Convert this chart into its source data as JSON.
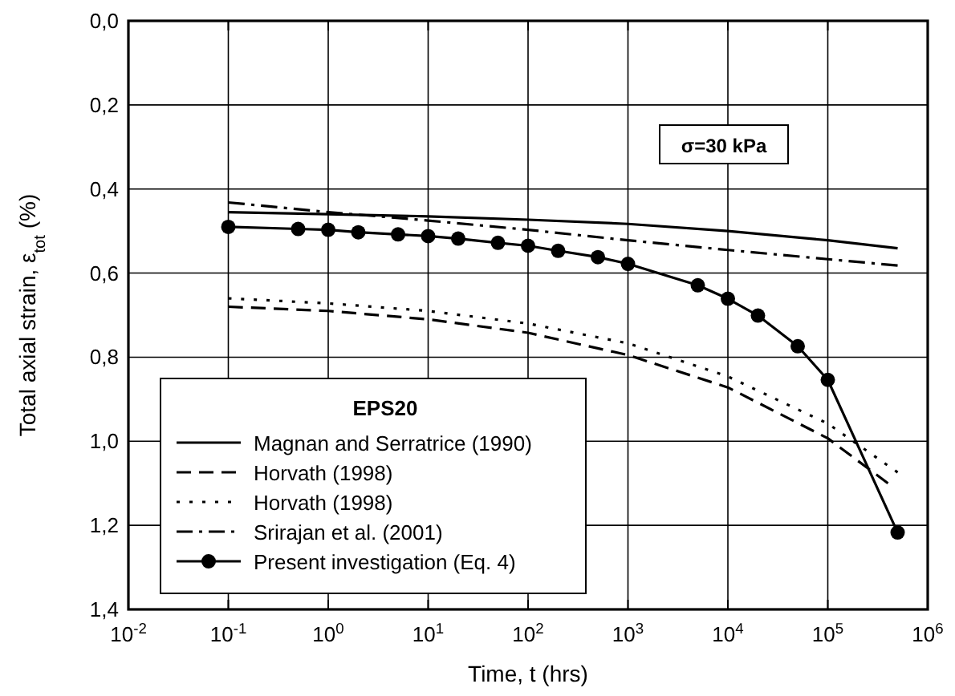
{
  "chart_data": {
    "type": "line",
    "xlabel": "Time, t (hrs)",
    "ylabel": "Total axial strain, ε$_{tot}$ (%)",
    "legend_title": "EPS20",
    "legend": "bottom left",
    "grid": true,
    "log": "x",
    "xlim": [
      0.01,
      1000000
    ],
    "xticks": [
      {
        "value": 0.01,
        "label": "10$^{-2}$"
      },
      {
        "value": 0.1,
        "label": "10$^{-1}$"
      },
      {
        "value": 1,
        "label": "10$^{0}$"
      },
      {
        "value": 10,
        "label": "10$^{1}$"
      },
      {
        "value": 100,
        "label": "10$^{2}$"
      },
      {
        "value": 1000,
        "label": "10$^{3}$"
      },
      {
        "value": 10000,
        "label": "10$^{4}$"
      },
      {
        "value": 100000,
        "label": "10$^{5}$"
      },
      {
        "value": 1000000,
        "label": "10$^{6}$"
      }
    ],
    "ylim": [
      1.4,
      0
    ],
    "yticks": [
      {
        "value": 0,
        "label": "0,0"
      },
      {
        "value": 0.2,
        "label": "0,2"
      },
      {
        "value": 0.4,
        "label": "0,4"
      },
      {
        "value": 0.6,
        "label": "0,6"
      },
      {
        "value": 0.8,
        "label": "0,8"
      },
      {
        "value": 1.0,
        "label": "1,0"
      },
      {
        "value": 1.2,
        "label": "1,2"
      },
      {
        "value": 1.4,
        "label": "1,4"
      }
    ],
    "annotations": [
      "σ=30 kPa"
    ],
    "series": [
      {
        "name": "Magnan and Serratrice (1990)",
        "color": "#000000",
        "line_style": "solid",
        "marker": "none",
        "x": [
          0.1,
          1,
          10,
          100,
          1000,
          10000,
          100000,
          500000
        ],
        "values": [
          0.455,
          0.46,
          0.465,
          0.473,
          0.483,
          0.5,
          0.522,
          0.541
        ]
      },
      {
        "name": "Horvath (1998)",
        "color": "#000000",
        "line_style": "dashed",
        "marker": "none",
        "x": [
          0.1,
          1,
          10,
          100,
          1000,
          10000,
          100000,
          400000
        ],
        "values": [
          0.68,
          0.69,
          0.71,
          0.742,
          0.795,
          0.872,
          0.993,
          1.1
        ]
      },
      {
        "name": "Horvath (1998)",
        "color": "#000000",
        "line_style": "dotted",
        "marker": "none",
        "x": [
          0.1,
          1,
          10,
          100,
          1000,
          10000,
          100000,
          500000
        ],
        "values": [
          0.66,
          0.672,
          0.69,
          0.72,
          0.767,
          0.846,
          0.958,
          1.074
        ]
      },
      {
        "name": "Srirajan et al. (2001)",
        "color": "#000000",
        "line_style": "dashdot",
        "marker": "none",
        "x": [
          0.1,
          1,
          10,
          100,
          1000,
          10000,
          100000,
          500000
        ],
        "values": [
          0.432,
          0.455,
          0.475,
          0.497,
          0.522,
          0.545,
          0.567,
          0.582
        ]
      },
      {
        "name": "Present investigation (Eq. 4)",
        "color": "#000000",
        "line_style": "solid",
        "marker": "circle",
        "x": [
          0.1,
          0.5,
          1,
          2,
          5,
          10,
          20,
          50,
          100,
          200,
          500,
          1000,
          5000,
          10000,
          20000,
          50000,
          100000,
          500000
        ],
        "values": [
          0.49,
          0.495,
          0.497,
          0.503,
          0.508,
          0.512,
          0.518,
          0.528,
          0.535,
          0.547,
          0.562,
          0.578,
          0.629,
          0.661,
          0.701,
          0.774,
          0.854,
          1.217
        ]
      }
    ]
  }
}
